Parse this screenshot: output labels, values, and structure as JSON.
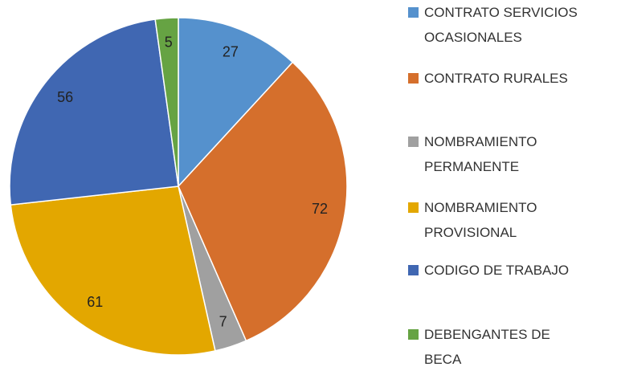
{
  "chart_data": {
    "type": "pie",
    "categories": [
      "CONTRATO SERVICIOS OCASIONALES",
      "CONTRATO RURALES",
      "NOMBRAMIENTO PERMANENTE",
      "NOMBRAMIENTO PROVISIONAL",
      "CODIGO DE TRABAJO",
      "DEBENGANTES DE BECA"
    ],
    "values": [
      27,
      72,
      7,
      61,
      56,
      5
    ],
    "colors": [
      "#5591cd",
      "#d56f2c",
      "#a0a0a0",
      "#e3a700",
      "#4067b2",
      "#66a343"
    ],
    "legend": "right"
  }
}
